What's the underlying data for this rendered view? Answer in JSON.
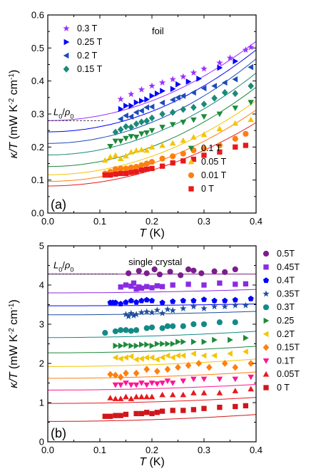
{
  "chart_data": [
    {
      "type": "scatter",
      "panel_label": "(a)",
      "annotation": "foil",
      "reference_label": "L0/ρ0",
      "reference_value": 0.28,
      "xlabel": "T (K)",
      "ylabel": "κ/T (mW K⁻² cm⁻¹)",
      "xlim": [
        0.0,
        0.4
      ],
      "ylim": [
        0.0,
        0.6
      ],
      "xticks": [
        "0.0",
        "0.1",
        "0.2",
        "0.3",
        "0.4"
      ],
      "yticks": [
        "0.0",
        "0.1",
        "0.2",
        "0.3",
        "0.4",
        "0.5",
        "0.6"
      ],
      "grid": false,
      "legend_positions": [
        "top-left",
        "bottom-right"
      ],
      "series": [
        {
          "name": "0.3 T",
          "color": "#9b30ff",
          "marker": "star",
          "legend_group": 0,
          "fit": {
            "a": 0.28,
            "b": 1.5
          },
          "x": [
            0.14,
            0.16,
            0.18,
            0.2,
            0.22,
            0.24,
            0.26,
            0.28,
            0.3,
            0.33,
            0.35,
            0.38,
            0.39
          ],
          "y": [
            0.345,
            0.36,
            0.374,
            0.385,
            0.395,
            0.405,
            0.413,
            0.425,
            0.437,
            0.455,
            0.47,
            0.494,
            0.502
          ]
        },
        {
          "name": "0.25 T",
          "color": "#0000ff",
          "marker": "triangle-right",
          "legend_group": 0,
          "fit": {
            "a": 0.246,
            "b": 1.55
          },
          "x": [
            0.14,
            0.15,
            0.16,
            0.17,
            0.18,
            0.19,
            0.2,
            0.21,
            0.22,
            0.24,
            0.25,
            0.27,
            0.29,
            0.33,
            0.36
          ],
          "y": [
            0.315,
            0.325,
            0.325,
            0.335,
            0.34,
            0.344,
            0.355,
            0.362,
            0.37,
            0.376,
            0.39,
            0.398,
            0.407,
            0.44,
            0.46
          ]
        },
        {
          "name": "0.2 T",
          "color": "#1c4bb8",
          "marker": "triangle-left",
          "legend_group": 0,
          "fit": {
            "a": 0.211,
            "b": 1.6
          },
          "x": [
            0.14,
            0.15,
            0.16,
            0.17,
            0.18,
            0.19,
            0.2,
            0.22,
            0.24,
            0.25,
            0.26,
            0.28,
            0.3,
            0.32,
            0.34,
            0.36,
            0.39
          ],
          "y": [
            0.285,
            0.295,
            0.292,
            0.305,
            0.31,
            0.32,
            0.322,
            0.334,
            0.343,
            0.35,
            0.355,
            0.365,
            0.378,
            0.385,
            0.395,
            0.405,
            0.442
          ]
        },
        {
          "name": "0.15 T",
          "color": "#1b8a78",
          "marker": "diamond",
          "legend_group": 0,
          "fit": {
            "a": 0.176,
            "b": 1.55
          },
          "x": [
            0.13,
            0.14,
            0.15,
            0.16,
            0.17,
            0.18,
            0.19,
            0.2,
            0.22,
            0.24,
            0.26,
            0.28,
            0.3,
            0.32,
            0.34,
            0.36,
            0.39
          ],
          "y": [
            0.245,
            0.253,
            0.262,
            0.26,
            0.27,
            0.276,
            0.279,
            0.288,
            0.3,
            0.305,
            0.314,
            0.32,
            0.33,
            0.348,
            0.365,
            0.362,
            0.385
          ]
        },
        {
          "name": "0.1 T",
          "color": "#1d8a3a",
          "marker": "triangle-down",
          "legend_group": 1,
          "fit": {
            "a": 0.141,
            "b": 1.5
          },
          "x": [
            0.12,
            0.13,
            0.14,
            0.15,
            0.16,
            0.17,
            0.18,
            0.19,
            0.2,
            0.22,
            0.24,
            0.26,
            0.28,
            0.3,
            0.33,
            0.36,
            0.39
          ],
          "y": [
            0.202,
            0.218,
            0.218,
            0.226,
            0.232,
            0.23,
            0.24,
            0.243,
            0.25,
            0.26,
            0.268,
            0.275,
            0.282,
            0.292,
            0.3,
            0.318,
            0.335
          ]
        },
        {
          "name": "0.05 T",
          "color": "#f5c400",
          "marker": "triangle-up",
          "legend_group": 1,
          "fit": {
            "a": 0.116,
            "b": 1.4
          },
          "x": [
            0.11,
            0.12,
            0.13,
            0.14,
            0.15,
            0.16,
            0.17,
            0.18,
            0.19,
            0.2,
            0.22,
            0.24,
            0.26,
            0.28,
            0.3,
            0.33,
            0.36,
            0.39
          ],
          "y": [
            0.16,
            0.17,
            0.175,
            0.165,
            0.173,
            0.185,
            0.19,
            0.192,
            0.19,
            0.2,
            0.205,
            0.212,
            0.22,
            0.23,
            0.238,
            0.255,
            0.272,
            0.283
          ]
        },
        {
          "name": "0.01 T",
          "color": "#ff7f0e",
          "marker": "circle",
          "legend_group": 1,
          "fit": {
            "a": 0.096,
            "b": 1.35
          },
          "x": [
            0.11,
            0.12,
            0.13,
            0.14,
            0.15,
            0.16,
            0.17,
            0.18,
            0.19,
            0.2,
            0.22,
            0.24,
            0.26,
            0.28,
            0.3,
            0.33,
            0.36,
            0.38
          ],
          "y": [
            0.12,
            0.125,
            0.133,
            0.135,
            0.135,
            0.138,
            0.14,
            0.145,
            0.15,
            0.155,
            0.165,
            0.172,
            0.18,
            0.19,
            0.195,
            0.205,
            0.225,
            0.24
          ]
        },
        {
          "name": "0 T",
          "color": "#e8191c",
          "marker": "square",
          "legend_group": 1,
          "fit": {
            "a": 0.082,
            "b": 1.2
          },
          "x": [
            0.11,
            0.12,
            0.13,
            0.14,
            0.15,
            0.16,
            0.17,
            0.18,
            0.19,
            0.2,
            0.22,
            0.24,
            0.26,
            0.28,
            0.3,
            0.33,
            0.36,
            0.38
          ],
          "y": [
            0.115,
            0.115,
            0.118,
            0.12,
            0.12,
            0.123,
            0.125,
            0.13,
            0.133,
            0.135,
            0.142,
            0.152,
            0.158,
            0.163,
            0.175,
            0.185,
            0.2,
            0.205
          ]
        }
      ]
    },
    {
      "type": "scatter",
      "panel_label": "(b)",
      "annotation": "single crystal",
      "reference_label": "L0/ρ0",
      "reference_value": 4.28,
      "xlabel": "T (K)",
      "ylabel": "κ/T (mW K⁻² cm⁻¹)",
      "xlim": [
        0.0,
        0.4
      ],
      "ylim": [
        0,
        5
      ],
      "xticks": [
        "0.0",
        "0.1",
        "0.2",
        "0.3",
        "0.4"
      ],
      "yticks": [
        "0",
        "1",
        "2",
        "3",
        "4",
        "5"
      ],
      "grid": false,
      "legend_position": "outside-right",
      "series": [
        {
          "name": "0.5T",
          "color": "#7b1e8c",
          "marker": "circle",
          "fit": {
            "a": 4.28,
            "b": 0.0
          },
          "x": [
            0.155,
            0.175,
            0.19,
            0.205,
            0.215,
            0.235,
            0.255,
            0.27,
            0.28,
            0.295,
            0.32,
            0.34,
            0.36
          ],
          "y": [
            4.3,
            4.36,
            4.3,
            4.4,
            4.27,
            4.34,
            4.25,
            4.4,
            4.37,
            4.3,
            4.35,
            4.33,
            4.4
          ]
        },
        {
          "name": "0.45T",
          "color": "#8a2be2",
          "marker": "square",
          "fit": {
            "a": 3.8,
            "b": 0.55
          },
          "x": [
            0.14,
            0.15,
            0.16,
            0.165,
            0.17,
            0.175,
            0.18,
            0.19,
            0.2,
            0.21,
            0.22,
            0.24,
            0.27,
            0.3,
            0.33,
            0.36,
            0.38
          ],
          "y": [
            3.95,
            4.0,
            3.97,
            4.05,
            3.9,
            3.95,
            3.92,
            3.96,
            3.93,
            3.98,
            3.96,
            4.0,
            4.02,
            4.0,
            4.05,
            4.02,
            4.03
          ]
        },
        {
          "name": "0.4T",
          "color": "#0000ff",
          "marker": "pentagon",
          "fit": {
            "a": 3.47,
            "b": 0.3
          },
          "x": [
            0.12,
            0.125,
            0.13,
            0.14,
            0.15,
            0.16,
            0.17,
            0.18,
            0.19,
            0.2,
            0.22,
            0.24,
            0.26,
            0.28,
            0.3,
            0.32,
            0.34,
            0.36,
            0.39
          ],
          "y": [
            3.55,
            3.55,
            3.55,
            3.52,
            3.56,
            3.6,
            3.56,
            3.6,
            3.62,
            3.6,
            3.55,
            3.58,
            3.6,
            3.6,
            3.63,
            3.6,
            3.6,
            3.62,
            3.65
          ]
        },
        {
          "name": "0.35T",
          "color": "#1f4e9b",
          "marker": "star",
          "fit": {
            "a": 3.24,
            "b": 0.55
          },
          "x": [
            0.15,
            0.155,
            0.16,
            0.165,
            0.17,
            0.18,
            0.19,
            0.2,
            0.21,
            0.22,
            0.23,
            0.24,
            0.26,
            0.28,
            0.3,
            0.32,
            0.34,
            0.36,
            0.38
          ],
          "y": [
            3.25,
            3.2,
            3.28,
            3.22,
            3.25,
            3.3,
            3.32,
            3.3,
            3.36,
            3.28,
            3.38,
            3.35,
            3.4,
            3.45,
            3.4,
            3.45,
            3.45,
            3.48,
            3.48
          ]
        },
        {
          "name": "0.3T",
          "color": "#138a86",
          "marker": "circle",
          "fit": {
            "a": 2.66,
            "b": 1.0
          },
          "x": [
            0.11,
            0.13,
            0.14,
            0.15,
            0.16,
            0.17,
            0.19,
            0.2,
            0.22,
            0.23,
            0.24,
            0.26,
            0.28,
            0.3,
            0.33,
            0.36
          ],
          "y": [
            2.78,
            2.82,
            2.85,
            2.85,
            2.83,
            2.85,
            2.9,
            2.92,
            2.9,
            2.95,
            2.95,
            2.95,
            3.0,
            3.0,
            3.05,
            3.05
          ]
        },
        {
          "name": "0.25",
          "color": "#1d8a3a",
          "marker": "triangle-right",
          "fit": {
            "a": 2.27,
            "b": 1.05
          },
          "x": [
            0.13,
            0.14,
            0.15,
            0.16,
            0.17,
            0.18,
            0.19,
            0.2,
            0.21,
            0.22,
            0.23,
            0.24,
            0.25,
            0.26,
            0.28,
            0.3,
            0.32,
            0.35,
            0.38
          ],
          "y": [
            2.45,
            2.45,
            2.48,
            2.45,
            2.45,
            2.48,
            2.48,
            2.45,
            2.5,
            2.5,
            2.5,
            2.5,
            2.55,
            2.55,
            2.55,
            2.55,
            2.6,
            2.6,
            2.65
          ]
        },
        {
          "name": "0.2T",
          "color": "#f5c400",
          "marker": "triangle-left",
          "fit": {
            "a": 1.92,
            "b": 1.2
          },
          "x": [
            0.13,
            0.14,
            0.15,
            0.16,
            0.17,
            0.18,
            0.19,
            0.2,
            0.21,
            0.22,
            0.23,
            0.24,
            0.25,
            0.26,
            0.28,
            0.3,
            0.32,
            0.35,
            0.38
          ],
          "y": [
            2.15,
            2.12,
            2.15,
            2.18,
            2.1,
            2.12,
            2.15,
            2.15,
            2.1,
            2.15,
            2.2,
            2.15,
            2.2,
            2.2,
            2.25,
            2.2,
            2.2,
            2.25,
            2.3
          ]
        },
        {
          "name": "0.15T",
          "color": "#ff7f0e",
          "marker": "diamond",
          "fit": {
            "a": 1.62,
            "b": 1.0
          },
          "x": [
            0.12,
            0.13,
            0.14,
            0.15,
            0.17,
            0.19,
            0.21,
            0.23,
            0.25,
            0.27,
            0.29,
            0.31,
            0.34,
            0.36,
            0.39
          ],
          "y": [
            1.72,
            1.7,
            1.65,
            1.75,
            1.75,
            1.85,
            1.8,
            1.85,
            1.9,
            1.95,
            2.0,
            1.9,
            2.0,
            1.9,
            2.0
          ]
        },
        {
          "name": "0.1T",
          "color": "#ff1493",
          "marker": "triangle-down",
          "fit": {
            "a": 1.32,
            "b": 0.9
          },
          "x": [
            0.13,
            0.14,
            0.15,
            0.16,
            0.17,
            0.18,
            0.19,
            0.2,
            0.21,
            0.22,
            0.23,
            0.24,
            0.26,
            0.28,
            0.3,
            0.33,
            0.36,
            0.39
          ],
          "y": [
            1.45,
            1.45,
            1.5,
            1.45,
            1.45,
            1.5,
            1.45,
            1.5,
            1.48,
            1.5,
            1.55,
            1.5,
            1.55,
            1.6,
            1.6,
            1.6,
            1.6,
            1.65
          ]
        },
        {
          "name": "0.05T",
          "color": "#e8191c",
          "marker": "triangle-up",
          "fit": {
            "a": 0.98,
            "b": 0.95
          },
          "x": [
            0.12,
            0.13,
            0.14,
            0.15,
            0.16,
            0.17,
            0.18,
            0.19,
            0.2,
            0.22,
            0.24,
            0.26,
            0.28,
            0.3,
            0.33,
            0.36,
            0.39
          ],
          "y": [
            1.12,
            1.1,
            1.1,
            1.15,
            1.1,
            1.15,
            1.15,
            1.15,
            1.15,
            1.2,
            1.2,
            1.2,
            1.25,
            1.25,
            1.25,
            1.3,
            1.35
          ]
        },
        {
          "name": "0 T",
          "color": "#d0161b",
          "marker": "square",
          "fit": {
            "a": 0.52,
            "b": 1.1
          },
          "x": [
            0.11,
            0.12,
            0.13,
            0.14,
            0.15,
            0.17,
            0.18,
            0.19,
            0.2,
            0.21,
            0.22,
            0.24,
            0.26,
            0.28,
            0.3,
            0.33,
            0.36,
            0.38
          ],
          "y": [
            0.65,
            0.65,
            0.67,
            0.67,
            0.7,
            0.72,
            0.72,
            0.75,
            0.72,
            0.75,
            0.78,
            0.8,
            0.8,
            0.82,
            0.85,
            0.88,
            0.9,
            0.92
          ]
        }
      ]
    }
  ]
}
